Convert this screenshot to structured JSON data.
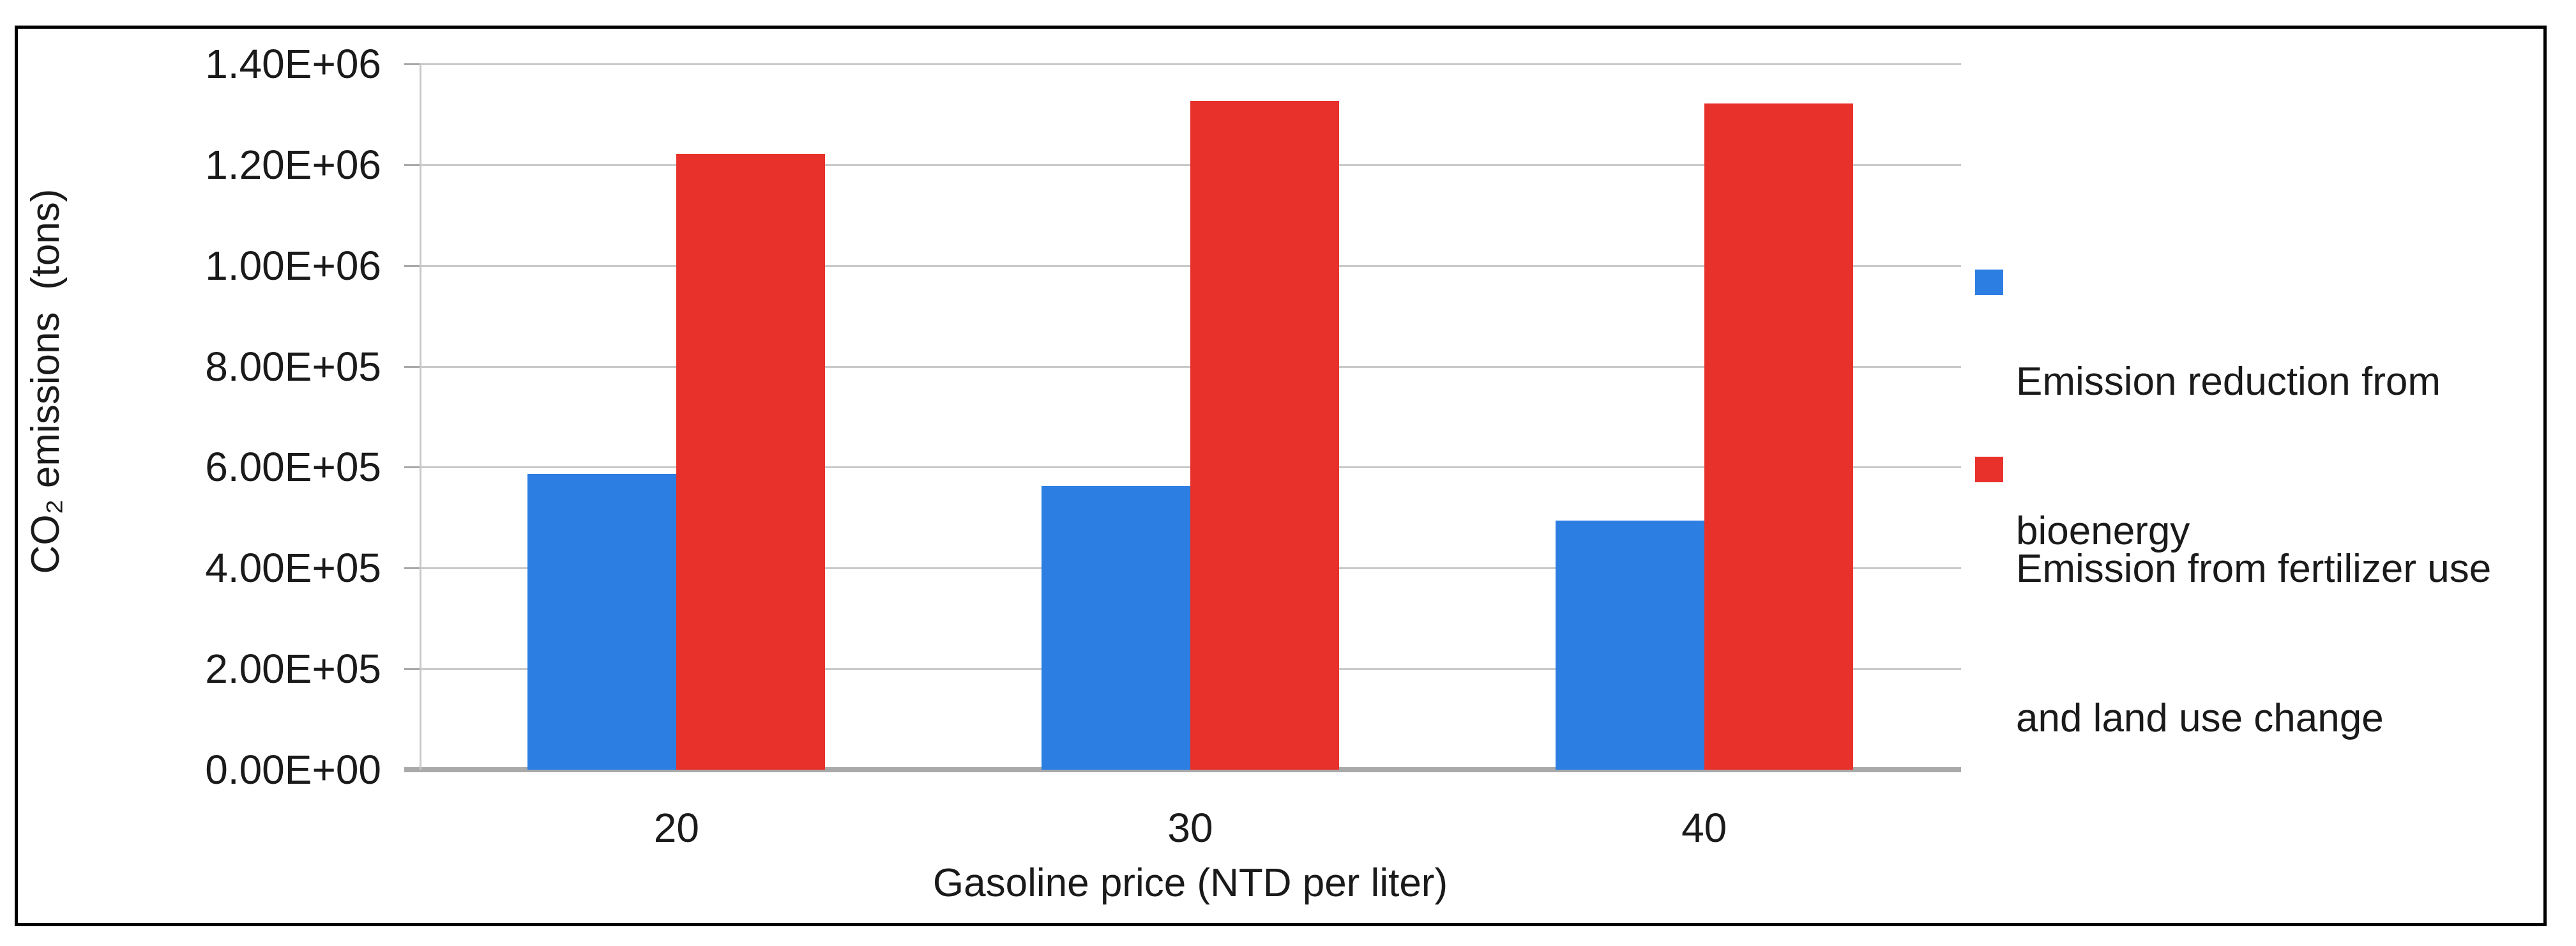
{
  "window": {
    "background": "#ffffff",
    "border_color": "#000000",
    "text_color": "#1a1a1a"
  },
  "chart_data": {
    "type": "bar",
    "title": "",
    "categories": [
      "20",
      "30",
      "40"
    ],
    "series": [
      {
        "name": "Emission reduction from bioenergy",
        "legend_lines": [
          "Emission reduction from",
          "bioenergy"
        ],
        "color": "#2d7ee3",
        "values": [
          587000,
          562000,
          494000
        ]
      },
      {
        "name": "Emission from fertilizer use and land use change",
        "legend_lines": [
          "Emission from fertilizer use",
          "and land use change"
        ],
        "color": "#e8312b",
        "values": [
          1222000,
          1326000,
          1322000
        ]
      }
    ],
    "xlabel": "Gasoline price (NTD per liter)",
    "ylabel": "CO₂ emissions  (tons)",
    "ylim": [
      0,
      1400000
    ],
    "ytick_step": 200000,
    "ytick_labels": [
      "0.00E+00",
      "2.00E+05",
      "4.00E+05",
      "6.00E+05",
      "8.00E+05",
      "1.00E+06",
      "1.20E+06",
      "1.40E+06"
    ],
    "grid": true,
    "legend_position": "right",
    "gridline_color": "#c9c9c9",
    "axis_line_color": "#a9a9a9"
  }
}
